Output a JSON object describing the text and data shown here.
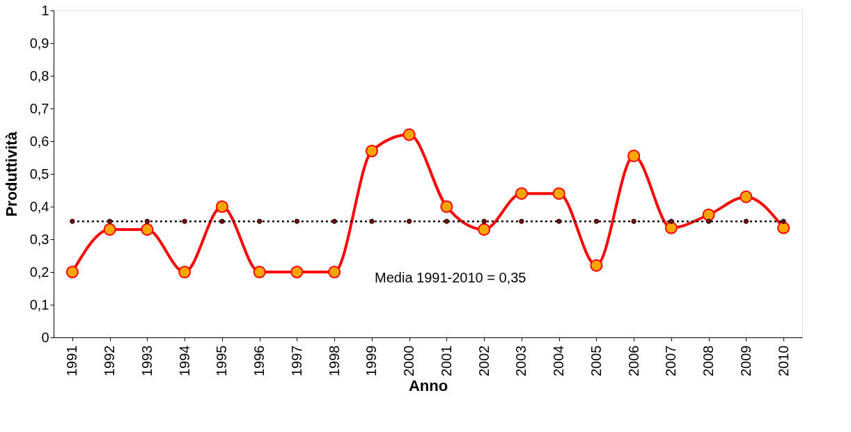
{
  "chart_data": {
    "type": "line",
    "xlabel": "Anno",
    "ylabel": "Produttività",
    "categories": [
      "1991",
      "1992",
      "1993",
      "1994",
      "1995",
      "1996",
      "1997",
      "1998",
      "1999",
      "2000",
      "2001",
      "2002",
      "2003",
      "2004",
      "2005",
      "2006",
      "2007",
      "2008",
      "2009",
      "2010"
    ],
    "series": [
      {
        "color": "#ff0000",
        "marker": "circle",
        "line_style": "solid",
        "values": [
          0.2,
          0.33,
          0.33,
          0.2,
          0.4,
          0.2,
          0.2,
          0.2,
          0.57,
          0.62,
          0.4,
          0.33,
          0.44,
          0.44,
          0.22,
          0.555,
          0.335,
          0.375,
          0.43,
          0.335
        ]
      },
      {
        "color": "#000000",
        "marker": "circle",
        "line_style": "dotted",
        "values": [
          0.355,
          0.355,
          0.355,
          0.355,
          0.355,
          0.355,
          0.355,
          0.355,
          0.355,
          0.355,
          0.355,
          0.355,
          0.355,
          0.355,
          0.355,
          0.355,
          0.355,
          0.355,
          0.355,
          0.355
        ]
      }
    ],
    "ylim": [
      0,
      1
    ],
    "yticks": [
      0,
      {
        "value": 0.1,
        "label": "0,1"
      },
      {
        "value": 0.2,
        "label": "0,2"
      },
      {
        "value": 0.3,
        "label": "0,3"
      },
      {
        "value": 0.4,
        "label": "0,4"
      },
      {
        "value": 0.5,
        "label": "0,5"
      },
      {
        "value": 0.6,
        "label": "0,6"
      },
      {
        "value": 0.7,
        "label": "0,7"
      },
      {
        "value": 0.8,
        "label": "0,8"
      },
      {
        "value": 0.9,
        "label": "0,9"
      },
      1
    ],
    "grid": false,
    "annotations": [
      "Media 1991-2010 = 0,35"
    ]
  }
}
